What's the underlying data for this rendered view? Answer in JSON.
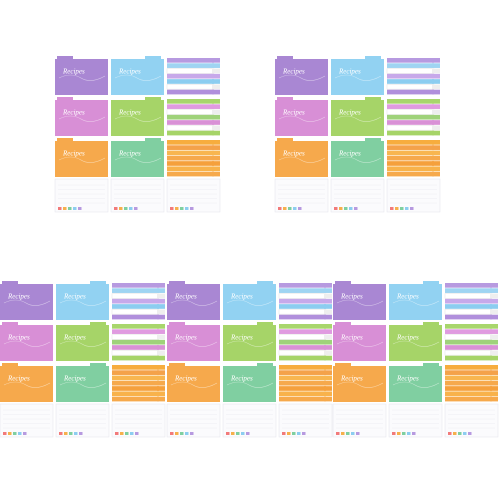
{
  "card_label": "Recipes"
}
